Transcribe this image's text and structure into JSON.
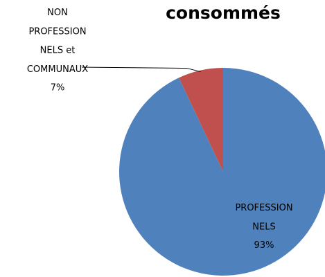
{
  "chart_data": {
    "type": "pie",
    "title": "consommés",
    "categories": [
      "PROFESSIONNELS",
      "NON PROFESSIONNELS et COMMUNAUX"
    ],
    "values": [
      93,
      7
    ],
    "value_labels": [
      "93%",
      "7%"
    ],
    "colors": [
      "#4f81bd",
      "#c0504d"
    ]
  }
}
